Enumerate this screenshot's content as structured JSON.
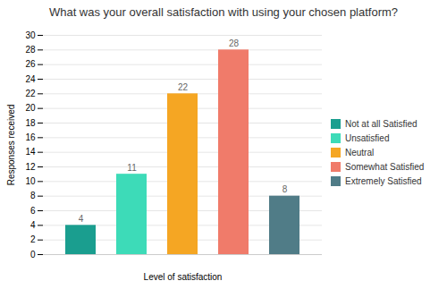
{
  "chart_data": {
    "type": "bar",
    "title": "What was your overall satisfaction with using your chosen platform?",
    "xlabel": "Level of satisfaction",
    "ylabel": "Responses received",
    "categories": [
      "Not at all Satisfied",
      "Unsatisfied",
      "Neutral",
      "Somewhat Satisfied",
      "Extremely Satisfied"
    ],
    "values": [
      4,
      11,
      22,
      28,
      8
    ],
    "colors": [
      "#1a9e8f",
      "#3ddbb8",
      "#f5a623",
      "#f07b6a",
      "#507c87"
    ],
    "ylim": [
      0,
      30
    ],
    "yticks": [
      0,
      2,
      4,
      6,
      8,
      10,
      12,
      14,
      16,
      18,
      20,
      22,
      24,
      26,
      28,
      30
    ],
    "grid": true,
    "legend": "right",
    "data_labels": true,
    "tick_labels": "y"
  }
}
